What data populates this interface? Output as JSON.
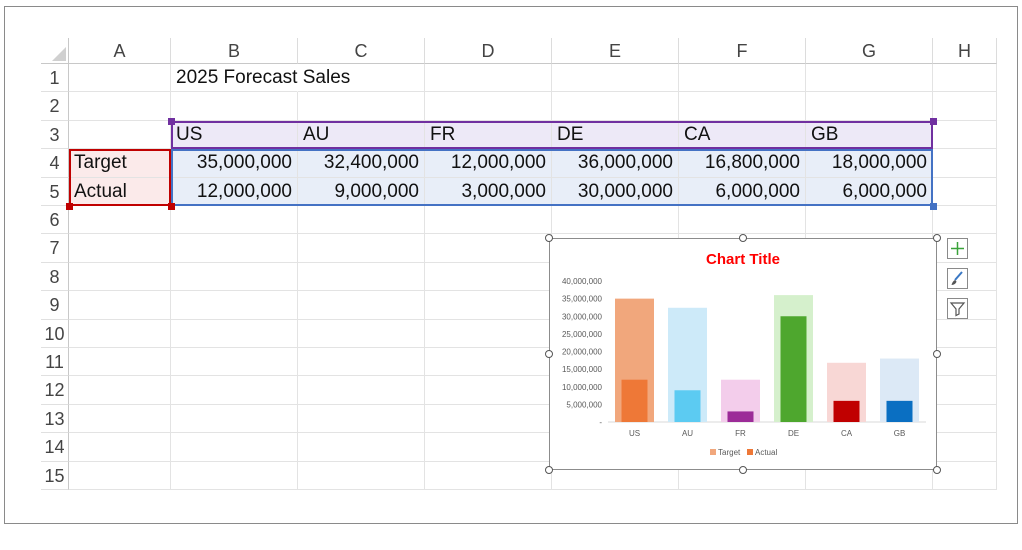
{
  "columns": [
    "A",
    "B",
    "C",
    "D",
    "E",
    "F",
    "G",
    "H"
  ],
  "rows": [
    "1",
    "2",
    "3",
    "4",
    "5",
    "6",
    "7",
    "8",
    "9",
    "10",
    "11",
    "12",
    "13",
    "14",
    "15"
  ],
  "sheet": {
    "b1": "2025 Forecast Sales",
    "headers": [
      "US",
      "AU",
      "FR",
      "DE",
      "CA",
      "GB"
    ],
    "target_label": "Target",
    "actual_label": "Actual",
    "target_values": [
      "35,000,000",
      "32,400,000",
      "12,000,000",
      "36,000,000",
      "16,800,000",
      "18,000,000"
    ],
    "actual_values": [
      "12,000,000",
      "9,000,000",
      "3,000,000",
      "30,000,000",
      "6,000,000",
      "6,000,000"
    ]
  },
  "colors": {
    "header_fill": "#ede9f7",
    "data_fill": "#e8eef8",
    "label_fill": "#fbeaea",
    "header_border": "#7030a0",
    "data_border": "#4472c4",
    "label_border": "#c00000",
    "chart_title": "#ff0000"
  },
  "chart_data": {
    "type": "bar",
    "title": "Chart Title",
    "categories": [
      "US",
      "AU",
      "FR",
      "DE",
      "CA",
      "GB"
    ],
    "series": [
      {
        "name": "Target",
        "values": [
          35000000,
          32400000,
          12000000,
          36000000,
          16800000,
          18000000
        ]
      },
      {
        "name": "Actual",
        "values": [
          12000000,
          9000000,
          3000000,
          30000000,
          6000000,
          6000000
        ]
      }
    ],
    "target_colors": [
      "#f1a77c",
      "#cdeaf9",
      "#f3cdeb",
      "#d5f0cc",
      "#f8d7d5",
      "#dce9f6"
    ],
    "actual_colors": [
      "#ee7837",
      "#5ccbf2",
      "#9c2c98",
      "#4ea72e",
      "#c00000",
      "#0a6fc2"
    ],
    "legend_colors": [
      "#f1a77c",
      "#ee7837"
    ],
    "y_ticks": [
      "-",
      "5,000,000",
      "10,000,000",
      "15,000,000",
      "20,000,000",
      "25,000,000",
      "30,000,000",
      "35,000,000",
      "40,000,000"
    ],
    "ylim": [
      0,
      40000000
    ],
    "legend_position": "bottom",
    "grid": false
  },
  "chart_side_buttons": [
    "plus-icon",
    "brush-icon",
    "filter-icon"
  ]
}
